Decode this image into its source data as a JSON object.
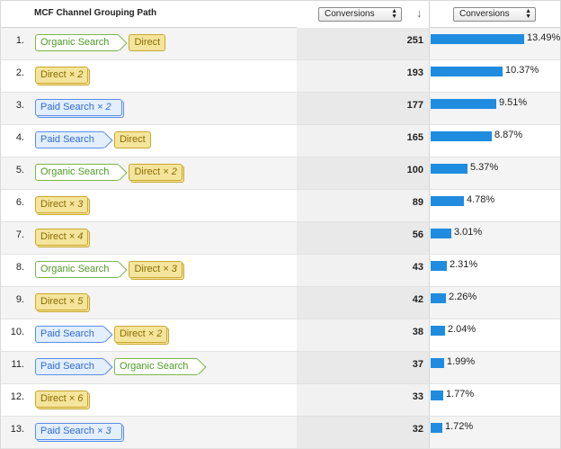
{
  "header": {
    "title": "MCF Channel Grouping Path",
    "metric_select": "Conversions",
    "bar_select": "Conversions",
    "sort_icon": "arrow-down-icon"
  },
  "colors": {
    "organic": "#7ab648",
    "direct": "#f5e49b",
    "paid": "#5b8ee6",
    "bar": "#1f8ce0"
  },
  "rows": [
    {
      "index": "1.",
      "path": [
        {
          "type": "organic",
          "label": "Organic Search",
          "mult": ""
        },
        {
          "type": "direct",
          "label": "Direct",
          "mult": ""
        }
      ],
      "conversions": "251",
      "percent": "13.49%",
      "share": 13.49
    },
    {
      "index": "2.",
      "path": [
        {
          "type": "direct",
          "label": "Direct",
          "mult": "× 2"
        }
      ],
      "conversions": "193",
      "percent": "10.37%",
      "share": 10.37
    },
    {
      "index": "3.",
      "path": [
        {
          "type": "paid",
          "label": "Paid Search",
          "mult": "× 2"
        }
      ],
      "conversions": "177",
      "percent": "9.51%",
      "share": 9.51
    },
    {
      "index": "4.",
      "path": [
        {
          "type": "paid",
          "label": "Paid Search",
          "mult": ""
        },
        {
          "type": "direct",
          "label": "Direct",
          "mult": ""
        }
      ],
      "conversions": "165",
      "percent": "8.87%",
      "share": 8.87
    },
    {
      "index": "5.",
      "path": [
        {
          "type": "organic",
          "label": "Organic Search",
          "mult": ""
        },
        {
          "type": "direct",
          "label": "Direct",
          "mult": "× 2"
        }
      ],
      "conversions": "100",
      "percent": "5.37%",
      "share": 5.37
    },
    {
      "index": "6.",
      "path": [
        {
          "type": "direct",
          "label": "Direct",
          "mult": "× 3"
        }
      ],
      "conversions": "89",
      "percent": "4.78%",
      "share": 4.78
    },
    {
      "index": "7.",
      "path": [
        {
          "type": "direct",
          "label": "Direct",
          "mult": "× 4"
        }
      ],
      "conversions": "56",
      "percent": "3.01%",
      "share": 3.01
    },
    {
      "index": "8.",
      "path": [
        {
          "type": "organic",
          "label": "Organic Search",
          "mult": ""
        },
        {
          "type": "direct",
          "label": "Direct",
          "mult": "× 3"
        }
      ],
      "conversions": "43",
      "percent": "2.31%",
      "share": 2.31
    },
    {
      "index": "9.",
      "path": [
        {
          "type": "direct",
          "label": "Direct",
          "mult": "× 5"
        }
      ],
      "conversions": "42",
      "percent": "2.26%",
      "share": 2.26
    },
    {
      "index": "10.",
      "path": [
        {
          "type": "paid",
          "label": "Paid Search",
          "mult": ""
        },
        {
          "type": "direct",
          "label": "Direct",
          "mult": "× 2"
        }
      ],
      "conversions": "38",
      "percent": "2.04%",
      "share": 2.04
    },
    {
      "index": "11.",
      "path": [
        {
          "type": "paid",
          "label": "Paid Search",
          "mult": ""
        },
        {
          "type": "organic",
          "label": "Organic Search",
          "mult": ""
        }
      ],
      "conversions": "37",
      "percent": "1.99%",
      "share": 1.99
    },
    {
      "index": "12.",
      "path": [
        {
          "type": "direct",
          "label": "Direct",
          "mult": "× 6"
        }
      ],
      "conversions": "33",
      "percent": "1.77%",
      "share": 1.77
    },
    {
      "index": "13.",
      "path": [
        {
          "type": "paid",
          "label": "Paid Search",
          "mult": "× 3"
        }
      ],
      "conversions": "32",
      "percent": "1.72%",
      "share": 1.72
    }
  ]
}
